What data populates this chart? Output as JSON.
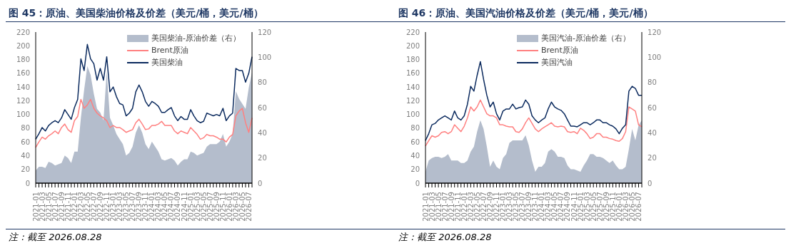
{
  "chart_data": [
    {
      "type": "line",
      "title": "图 45：原油、美国柴油价格及价差（美元/桶，美元/桶）",
      "categories": [
        "2021-01",
        null,
        "2021-03",
        null,
        "2021-05",
        null,
        "2021-07",
        null,
        "2021-09",
        null,
        "2021-11",
        null,
        "2022-01",
        null,
        "2022-03",
        null,
        "2022-05",
        null,
        "2022-07",
        null,
        "2022-09",
        null,
        "2022-11",
        null,
        "2023-01",
        null,
        "2023-03",
        null,
        "2023-05",
        null,
        "2023-07",
        null,
        "2023-09",
        null,
        "2023-11",
        null,
        "2024-01",
        null,
        "2024-03",
        null,
        "2024-05",
        null,
        "2024-07",
        null,
        "2024-09",
        null,
        "2024-11",
        null,
        "2025-01",
        null,
        "2025-03",
        null,
        "2025-05",
        null,
        "2025-07",
        null,
        "2025-09",
        null,
        "2025-11",
        null,
        "2026-01",
        null,
        "2026-03",
        null,
        "2026-05",
        null,
        "2026-07",
        null
      ],
      "series": [
        {
          "name": "美国柴油-原油价差（右）",
          "type": "area",
          "axis": "y2",
          "color": "#b4bdcc",
          "values": [
            10,
            13,
            13,
            12,
            17,
            16,
            14,
            15,
            16,
            22,
            20,
            16,
            25,
            25,
            52,
            74,
            93,
            86,
            71,
            59,
            56,
            50,
            89,
            52,
            46,
            39,
            35,
            31,
            22,
            24,
            29,
            40,
            46,
            40,
            31,
            27,
            33,
            29,
            25,
            19,
            18,
            19,
            20,
            18,
            14,
            17,
            19,
            19,
            25,
            24,
            22,
            23,
            24,
            29,
            31,
            31,
            31,
            33,
            39,
            29,
            33,
            39,
            73,
            67,
            63,
            59,
            76,
            88
          ]
        },
        {
          "name": "Brent原油",
          "color": "#ff8080",
          "values": [
            52,
            60,
            67,
            64,
            69,
            72,
            76,
            72,
            81,
            86,
            78,
            74,
            91,
            97,
            122,
            109,
            114,
            122,
            109,
            102,
            98,
            95,
            91,
            81,
            84,
            81,
            81,
            78,
            74,
            76,
            78,
            88,
            93,
            86,
            78,
            79,
            84,
            84,
            86,
            90,
            84,
            84,
            84,
            76,
            72,
            76,
            74,
            72,
            81,
            76,
            71,
            64,
            66,
            71,
            69,
            69,
            67,
            64,
            64,
            60,
            67,
            71,
            98,
            105,
            109,
            88,
            74,
            95
          ]
        },
        {
          "name": "美国柴油",
          "color": "#0b2a5e",
          "values": [
            64,
            72,
            81,
            76,
            84,
            88,
            91,
            88,
            95,
            107,
            100,
            93,
            110,
            122,
            181,
            164,
            202,
            181,
            174,
            150,
            167,
            150,
            184,
            133,
            140,
            126,
            116,
            114,
            98,
            102,
            109,
            133,
            143,
            133,
            119,
            112,
            119,
            116,
            112,
            103,
            103,
            107,
            110,
            98,
            91,
            97,
            93,
            93,
            107,
            98,
            91,
            88,
            90,
            102,
            100,
            98,
            100,
            98,
            109,
            91,
            98,
            102,
            167,
            164,
            164,
            147,
            160,
            184
          ]
        }
      ],
      "ylim": [
        0,
        220
      ],
      "yticks": [
        0,
        20,
        40,
        60,
        80,
        100,
        120,
        140,
        160,
        180,
        200,
        220
      ],
      "y2lim": [
        0,
        120
      ],
      "y2ticks": [
        0,
        20,
        40,
        60,
        80,
        100,
        120
      ],
      "legend": "top right",
      "annotations": [
        "注：截至 2026.08.28"
      ]
    },
    {
      "type": "line",
      "title": "图 46：原油、美国汽油价格及价差（美元/桶，美元/桶）",
      "categories": [
        "2021-01",
        null,
        "2021-03",
        null,
        "2021-05",
        null,
        "2021-07",
        null,
        "2021-09",
        null,
        "2021-11",
        null,
        "2022-01",
        null,
        "2022-03",
        null,
        "2022-05",
        null,
        "2022-07",
        null,
        "2022-09",
        null,
        "2022-11",
        null,
        "2023-01",
        null,
        "2023-03",
        null,
        "2023-05",
        null,
        "2023-07",
        null,
        "2023-09",
        null,
        "2023-11",
        null,
        "2024-01",
        null,
        "2024-03",
        null,
        "2024-05",
        null,
        "2024-07",
        null,
        "2024-09",
        null,
        "2024-11",
        null,
        "2025-01",
        null,
        "2025-03",
        null,
        "2025-05",
        null,
        "2025-07",
        null,
        "2025-09",
        null,
        "2025-11",
        null,
        "2026-01",
        null,
        "2026-03",
        null,
        "2026-05",
        null,
        "2026-07",
        null
      ],
      "series": [
        {
          "name": "美国汽油-原油价差（右）",
          "type": "area",
          "axis": "y2",
          "color": "#b4bdcc",
          "values": [
            9,
            18,
            20,
            21,
            21,
            20,
            21,
            23,
            18,
            18,
            18,
            16,
            16,
            18,
            25,
            29,
            41,
            50,
            43,
            29,
            13,
            18,
            13,
            11,
            20,
            23,
            32,
            34,
            34,
            34,
            34,
            38,
            30,
            18,
            9,
            13,
            13,
            16,
            25,
            27,
            25,
            21,
            21,
            20,
            14,
            11,
            11,
            10,
            9,
            14,
            18,
            23,
            23,
            21,
            21,
            20,
            18,
            16,
            18,
            14,
            11,
            11,
            13,
            27,
            43,
            34,
            46,
            50
          ]
        },
        {
          "name": "Brent原油",
          "color": "#ff8080",
          "values": [
            54,
            62,
            69,
            67,
            69,
            74,
            75,
            72,
            75,
            85,
            80,
            75,
            83,
            95,
            111,
            105,
            111,
            121,
            111,
            101,
            98,
            98,
            95,
            85,
            85,
            83,
            82,
            82,
            75,
            74,
            79,
            88,
            95,
            87,
            79,
            75,
            79,
            82,
            85,
            88,
            83,
            82,
            83,
            82,
            75,
            74,
            75,
            72,
            80,
            77,
            72,
            65,
            67,
            72,
            72,
            67,
            67,
            65,
            64,
            62,
            61,
            65,
            75,
            111,
            108,
            105,
            85,
            82
          ]
        },
        {
          "name": "美国汽油",
          "color": "#0b2a5e",
          "values": [
            62,
            72,
            85,
            87,
            92,
            95,
            98,
            95,
            92,
            105,
            95,
            92,
            98,
            115,
            141,
            134,
            157,
            177,
            151,
            128,
            111,
            118,
            101,
            92,
            105,
            108,
            108,
            115,
            108,
            110,
            111,
            121,
            115,
            98,
            92,
            88,
            92,
            95,
            108,
            118,
            111,
            108,
            106,
            101,
            92,
            83,
            83,
            82,
            85,
            88,
            88,
            85,
            88,
            92,
            92,
            88,
            88,
            85,
            83,
            79,
            72,
            80,
            85,
            134,
            141,
            138,
            128,
            128
          ]
        }
      ],
      "ylim": [
        0,
        220
      ],
      "yticks": [
        0,
        20,
        40,
        60,
        80,
        100,
        120,
        140,
        160,
        180,
        200,
        220
      ],
      "y2lim": [
        0,
        120
      ],
      "y2ticks": [
        0,
        20,
        40,
        60,
        80,
        100,
        120
      ],
      "legend": "top right",
      "annotations": [
        "注：截至 2026.08.28"
      ]
    }
  ]
}
